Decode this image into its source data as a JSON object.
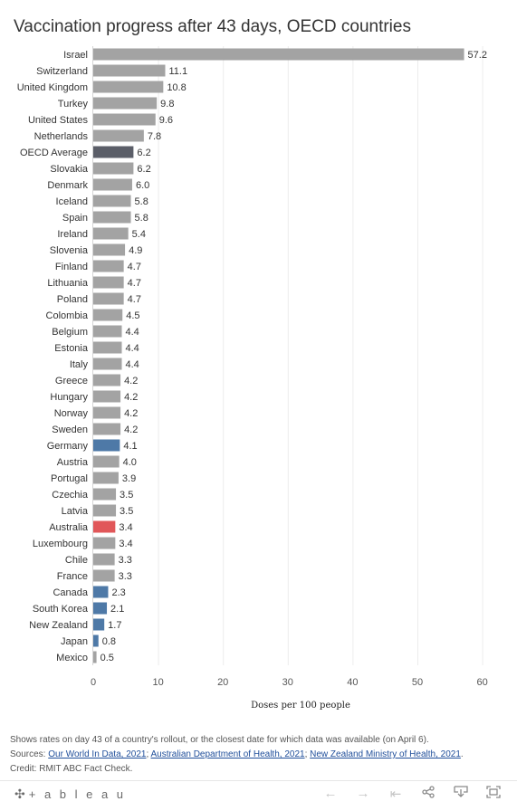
{
  "title": "Vaccination progress after 43 days, OECD countries",
  "chart_data": {
    "type": "bar",
    "orientation": "horizontal",
    "xlabel": "Doses per 100 people",
    "xlim": [
      0,
      63
    ],
    "xticks": [
      0,
      10,
      20,
      30,
      40,
      50,
      60
    ],
    "grid": true,
    "categories": [
      "Israel",
      "Switzerland",
      "United Kingdom",
      "Turkey",
      "United States",
      "Netherlands",
      "OECD Average",
      "Slovakia",
      "Denmark",
      "Iceland",
      "Spain",
      "Ireland",
      "Slovenia",
      "Finland",
      "Lithuania",
      "Poland",
      "Colombia",
      "Belgium",
      "Estonia",
      "Italy",
      "Greece",
      "Hungary",
      "Norway",
      "Sweden",
      "Germany",
      "Austria",
      "Portugal",
      "Czechia",
      "Latvia",
      "Australia",
      "Luxembourg",
      "Chile",
      "France",
      "Canada",
      "South Korea",
      "New Zealand",
      "Japan",
      "Mexico"
    ],
    "values": [
      57.2,
      11.1,
      10.8,
      9.8,
      9.6,
      7.8,
      6.2,
      6.2,
      6.0,
      5.8,
      5.8,
      5.4,
      4.9,
      4.7,
      4.7,
      4.7,
      4.5,
      4.4,
      4.4,
      4.4,
      4.2,
      4.2,
      4.2,
      4.2,
      4.1,
      4.0,
      3.9,
      3.5,
      3.5,
      3.4,
      3.4,
      3.3,
      3.3,
      2.3,
      2.1,
      1.7,
      0.8,
      0.5
    ],
    "value_labels": [
      "57.2",
      "11.1",
      "10.8",
      "9.8",
      "9.6",
      "7.8",
      "6.2",
      "6.2",
      "6.0",
      "5.8",
      "5.8",
      "5.4",
      "4.9",
      "4.7",
      "4.7",
      "4.7",
      "4.5",
      "4.4",
      "4.4",
      "4.4",
      "4.2",
      "4.2",
      "4.2",
      "4.2",
      "4.1",
      "4.0",
      "3.9",
      "3.5",
      "3.5",
      "3.4",
      "3.4",
      "3.3",
      "3.3",
      "2.3",
      "2.1",
      "1.7",
      "0.8",
      "0.5"
    ],
    "colors": {
      "default": "#a3a3a3",
      "highlight": "#4e79a7",
      "australia": "#e15759",
      "average": "#5b5e68"
    },
    "highlight_categories": [
      "Germany",
      "Canada",
      "South Korea",
      "New Zealand",
      "Japan"
    ],
    "australia_category": "Australia",
    "average_category": "OECD Average"
  },
  "notes": {
    "line1": "Shows rates on day 43 of a country's rollout, or the closest date for which data was available (on April 6).",
    "sources_label": "Sources:",
    "source1": "Our World In Data, 2021",
    "source2": "Australian Department of Health, 2021",
    "source3": "New Zealand Ministry of Health, 2021",
    "separator": ";",
    "end": ".",
    "credit": "Credit: RMIT ABC Fact Check."
  },
  "footer": {
    "logo_mark": "✣",
    "logo_text": "+ a b l e a u",
    "icons": [
      "undo-icon",
      "redo-icon",
      "revert-icon",
      "share-icon",
      "download-icon",
      "fullscreen-icon"
    ]
  }
}
